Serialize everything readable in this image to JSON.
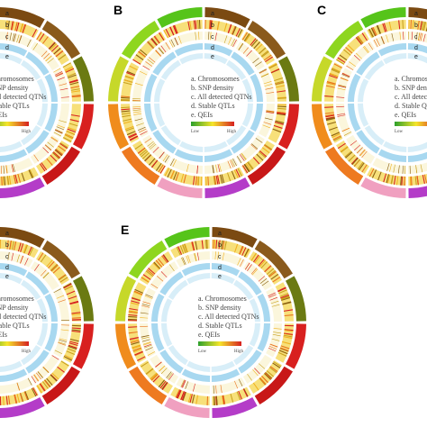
{
  "panels": [
    {
      "label": "B"
    },
    {
      "label": "C"
    },
    {
      "label": "E"
    }
  ],
  "ring_letters": [
    "a",
    "b",
    "c",
    "d",
    "e"
  ],
  "legend": {
    "items": [
      "a. Chromosomes",
      "b. SNP density",
      "c. All detected QTNs",
      "d. Stable QTLs",
      "e. QEIs"
    ],
    "low": "Low",
    "high": "High"
  }
}
